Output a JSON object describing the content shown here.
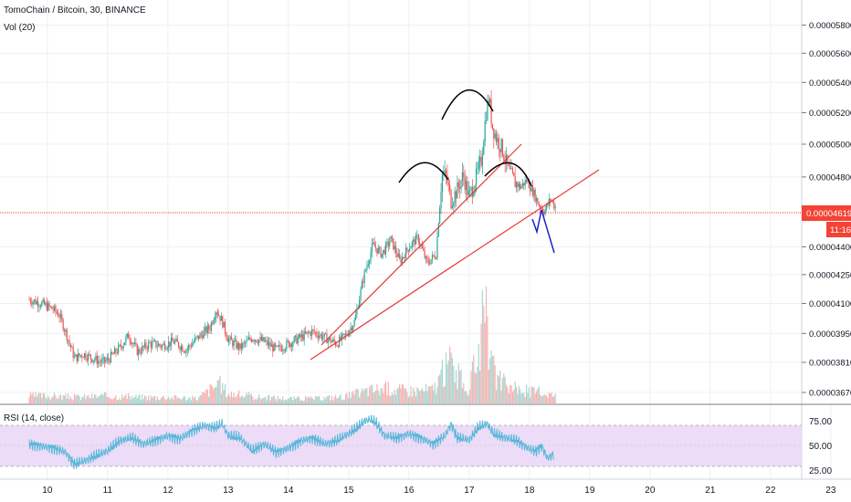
{
  "header": {
    "symbol_line": "TomoChain / Bitcoin, 30, BINANCE",
    "volume_label": "Vol (20)"
  },
  "rsi": {
    "label": "RSI (14, close)",
    "levels": [
      {
        "label": "75.00",
        "value": 75
      },
      {
        "label": "50.00",
        "value": 50
      },
      {
        "label": "25.00",
        "value": 25
      }
    ]
  },
  "price_badge": {
    "value": "0.00004619",
    "countdown": "11:16"
  },
  "colors": {
    "up": "#26a69a",
    "down": "#ef5350",
    "trendline": "#e53935",
    "pattern": "#000000",
    "projection": "#1e22c8",
    "rsi_line": "#56b6d8",
    "rsi_band": "#ecdcf7",
    "badge": "#f44336"
  },
  "chart_data": [
    {
      "type": "candlestick",
      "title": "TomoChain / Bitcoin, 30, BINANCE",
      "x_tick_labels": [
        "10",
        "11",
        "12",
        "13",
        "14",
        "15",
        "16",
        "17",
        "18",
        "19",
        "20",
        "21",
        "22",
        "23"
      ],
      "y_tick_labels": [
        "0.00005800",
        "0.00005600",
        "0.00005400",
        "0.00005200",
        "0.00005000",
        "0.00004800",
        "0.00004619",
        "0.00004400",
        "0.00004250",
        "0.00004100",
        "0.00003950",
        "0.00003810",
        "0.00003670"
      ],
      "y_scale": "log",
      "ylim": [
        3.62e-05,
        5.95e-05
      ],
      "close_series": {
        "x": [
          9.7,
          9.9,
          10.1,
          10.2,
          10.3,
          10.45,
          10.6,
          10.75,
          10.9,
          11.0,
          11.2,
          11.35,
          11.5,
          11.7,
          11.9,
          12.1,
          12.3,
          12.5,
          12.7,
          12.8,
          12.9,
          13.0,
          13.2,
          13.4,
          13.6,
          13.8,
          14.0,
          14.2,
          14.4,
          14.6,
          14.8,
          14.95,
          15.1,
          15.25,
          15.4,
          15.55,
          15.7,
          15.85,
          16.0,
          16.15,
          16.3,
          16.45,
          16.55,
          16.62,
          16.7,
          16.8,
          16.9,
          17.0,
          17.1,
          17.2,
          17.28,
          17.33,
          17.38,
          17.45,
          17.55,
          17.65,
          17.75,
          17.85,
          17.95,
          18.05,
          18.15,
          18.25,
          18.35,
          18.45
        ],
        "values": [
          4.12e-05,
          4.1e-05,
          4.07e-05,
          4.04e-05,
          3.96e-05,
          3.83e-05,
          3.85e-05,
          3.83e-05,
          3.81e-05,
          3.82e-05,
          3.88e-05,
          3.94e-05,
          3.86e-05,
          3.9e-05,
          3.89e-05,
          3.91e-05,
          3.87e-05,
          3.93e-05,
          3.98e-05,
          4.07e-05,
          4.01e-05,
          3.92e-05,
          3.88e-05,
          3.93e-05,
          3.91e-05,
          3.87e-05,
          3.9e-05,
          3.93e-05,
          3.96e-05,
          3.93e-05,
          3.9e-05,
          3.94e-05,
          4.01e-05,
          4.24e-05,
          4.41e-05,
          4.36e-05,
          4.44e-05,
          4.32e-05,
          4.4e-05,
          4.45e-05,
          4.31e-05,
          4.36e-05,
          4.82e-05,
          4.8e-05,
          4.66e-05,
          4.72e-05,
          4.81e-05,
          4.68e-05,
          4.78e-05,
          4.9e-05,
          5.2e-05,
          5.3e-05,
          5.12e-05,
          5.04e-05,
          4.97e-05,
          4.84e-05,
          4.77e-05,
          4.74e-05,
          4.78e-05,
          4.72e-05,
          4.64e-05,
          4.6e-05,
          4.67e-05,
          4.61e-05
        ]
      },
      "volume_series": {
        "x": [
          10.0,
          10.5,
          11.0,
          11.5,
          12.0,
          12.5,
          12.85,
          13.0,
          13.5,
          14.0,
          14.5,
          15.0,
          15.3,
          15.6,
          16.0,
          16.4,
          16.7,
          16.75,
          17.0,
          17.25,
          17.3,
          17.35,
          17.5,
          17.7,
          17.9,
          18.1,
          18.3,
          18.5
        ],
        "values": [
          0.6,
          0.5,
          0.6,
          0.5,
          0.5,
          0.4,
          1.6,
          0.8,
          0.5,
          0.4,
          0.4,
          0.6,
          1.0,
          1.2,
          1.0,
          1.1,
          3.4,
          2.5,
          1.0,
          6.5,
          5.8,
          3.0,
          1.8,
          1.2,
          1.0,
          0.9,
          0.8,
          0.5
        ]
      }
    },
    {
      "type": "line",
      "title": "RSI (14, close)",
      "x": [
        9.7,
        9.9,
        10.1,
        10.3,
        10.45,
        10.6,
        10.8,
        11.0,
        11.2,
        11.4,
        11.6,
        11.8,
        12.0,
        12.2,
        12.4,
        12.6,
        12.8,
        12.9,
        13.0,
        13.2,
        13.4,
        13.6,
        13.8,
        14.0,
        14.2,
        14.4,
        14.6,
        14.8,
        15.0,
        15.15,
        15.25,
        15.35,
        15.45,
        15.6,
        15.8,
        16.0,
        16.2,
        16.4,
        16.6,
        16.7,
        16.8,
        17.0,
        17.15,
        17.3,
        17.4,
        17.6,
        17.8,
        18.0,
        18.1,
        18.2,
        18.3,
        18.4
      ],
      "values": [
        52,
        50,
        48,
        44,
        32,
        35,
        40,
        45,
        55,
        58,
        52,
        56,
        60,
        57,
        65,
        70,
        68,
        72,
        60,
        58,
        45,
        52,
        44,
        48,
        55,
        58,
        52,
        55,
        62,
        68,
        74,
        76,
        73,
        60,
        58,
        62,
        58,
        52,
        60,
        72,
        58,
        56,
        68,
        72,
        62,
        58,
        55,
        47,
        45,
        50,
        38,
        42
      ],
      "ylim": [
        20,
        82
      ]
    }
  ]
}
